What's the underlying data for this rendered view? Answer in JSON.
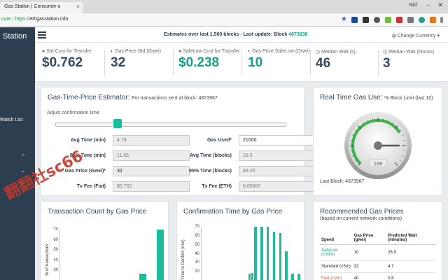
{
  "browser": {
    "tab_title": "Gas Station | Consumer o",
    "tab_close": "×",
    "user": "Nicl",
    "minimize": "–",
    "close": "✕",
    "url_secure": "cure",
    "url_scheme": "https://",
    "url_host": "ethgasstation.info",
    "star": "★"
  },
  "sidebar": {
    "brand": "Station",
    "watch_list": "Watch List",
    "chevron_1": "⌄",
    "chevron_2": "⌄"
  },
  "header": {
    "estimate_text": "Estimates over last 1,500 blocks - Last update: Block",
    "block_number": "4873938",
    "currency_label": "Change Currency",
    "currency_caret": "▾"
  },
  "stats": [
    {
      "label": "Std Cost for Transfer",
      "value": "$0.762"
    },
    {
      "label": "Gas Price Std (Gwei)",
      "value": "32"
    },
    {
      "label": "SafeLow Cost for Transfer",
      "value": "$0.238"
    },
    {
      "label": "Gas Price SafeLow (Gwei)",
      "value": "10"
    },
    {
      "label": "Median Wait (s)",
      "value": "46"
    },
    {
      "label": "Median Wait (blocks)",
      "value": "3"
    }
  ],
  "estimator": {
    "title": "Gas-Time-Price Estimator:",
    "subtitle": "For transactions sent at block: 4873967",
    "adjust_label": "Adjust confirmation time",
    "slider_value": 0.27,
    "fields": {
      "avg_time_min": {
        "label": "Avg Time (min)",
        "value": "4.74"
      },
      "time_95_min": {
        "label": "95% Time (min)",
        "value": "11.85"
      },
      "gas_price": {
        "label": "Gas Price (Gwei)*",
        "value": "32"
      },
      "tx_fee_fiat": {
        "label": "Tx Fee (Fiat)",
        "value": "$0.762"
      },
      "gas_used": {
        "label": "Gas Used*",
        "value": "21000"
      },
      "avg_time_blocks": {
        "label": "Avg Time (blocks)",
        "value": "18.5"
      },
      "time_95_blocks": {
        "label": "95% Time (blocks)",
        "value": "46.25"
      },
      "tx_fee_eth": {
        "label": "Tx Fee (ETH)",
        "value": "0.00067"
      }
    }
  },
  "realtime": {
    "title": "Real Time Gas Use:",
    "subtitle": "% Block Limit (last 10)",
    "gauge_value": 100,
    "gauge_readout": "100",
    "last_block": "Last Block: 4873987"
  },
  "chart_count": {
    "title": "Transaction Count by Gas Price",
    "ylabel": "% of transactions",
    "chart_data": {
      "type": "bar",
      "ylim": [
        0,
        70
      ],
      "ticks": [
        70,
        60,
        50,
        40,
        30
      ],
      "values": [
        0,
        0,
        0,
        0,
        0,
        0,
        0,
        0,
        0,
        20,
        0,
        68
      ],
      "ylabel": "% of transactions"
    }
  },
  "chart_time": {
    "title": "Confirmation Time by Gas Price",
    "ylabel": "Time to Confirm (min)",
    "chart_data": {
      "type": "bar",
      "ylim": [
        0,
        70
      ],
      "ticks": [
        70,
        60,
        50,
        40,
        30,
        20
      ],
      "values": [
        0,
        0,
        0,
        0,
        0,
        0,
        0,
        0,
        0,
        0,
        0,
        0,
        0,
        0,
        0,
        5,
        11,
        65,
        0,
        65,
        0,
        62,
        0,
        57,
        0,
        55,
        0,
        35,
        0,
        10,
        0,
        6
      ],
      "ylabel": "Time to Confirm (min)"
    }
  },
  "recommended": {
    "title": "Recommended Gas Prices",
    "subtitle": "(based on current network conditions)",
    "headers": [
      "Speed",
      "Gas Price (gwei)",
      "Predicted Wait (minutes)"
    ],
    "rows": [
      {
        "speed": "SafeLow (<30m)",
        "price": "10",
        "wait": "26.9"
      },
      {
        "speed": "Standard (<5m)",
        "price": "32",
        "wait": "4.7"
      },
      {
        "speed": "Fast (<2m)",
        "price": "40",
        "wait": "0.8"
      }
    ]
  },
  "watermark": "翻翻社sc66",
  "colors": {
    "accent": "#1abc9c",
    "sidebar": "#2c3e50",
    "danger": "#e74c3c"
  }
}
